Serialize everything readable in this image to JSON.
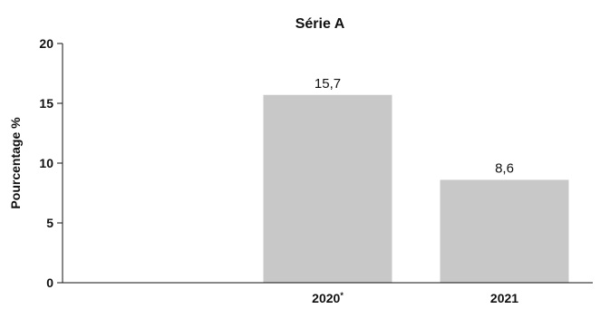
{
  "chart_data": {
    "type": "bar",
    "title": "Série A",
    "xlabel": "",
    "ylabel": "Pourcentage %",
    "categories": [
      "",
      "2020",
      "2021"
    ],
    "category_marks": [
      "",
      "*",
      ""
    ],
    "values": [
      null,
      15.7,
      8.6
    ],
    "data_labels": [
      "",
      "15,7",
      "8,6"
    ],
    "ylim": [
      0,
      20
    ],
    "yticks": [
      0,
      5,
      10,
      15,
      20
    ],
    "grid": false,
    "legend": "none",
    "colors": {
      "bar": "#c8c8c8",
      "axis": "#111111",
      "text": "#111111",
      "background": "#ffffff"
    }
  }
}
